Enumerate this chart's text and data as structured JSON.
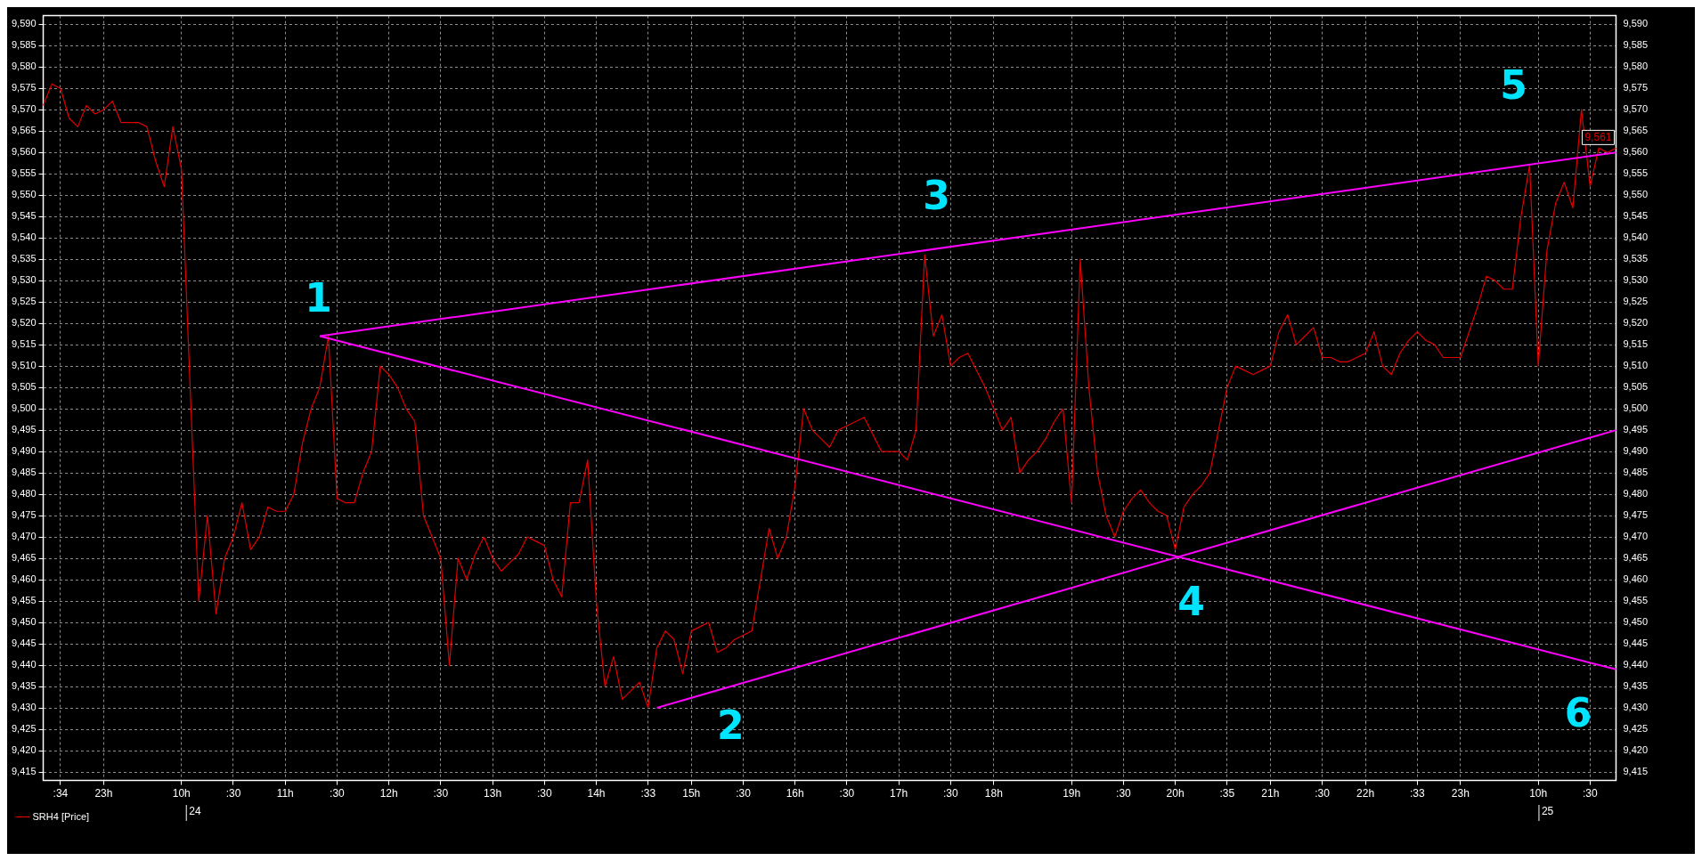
{
  "chart_data": {
    "type": "line",
    "categories": [
      null,
      null,
      ":34",
      null,
      null,
      null,
      null,
      "23h",
      null,
      null,
      null,
      null,
      null,
      null,
      null,
      null,
      "10h",
      null,
      null,
      null,
      null,
      null,
      ":30",
      null,
      null,
      null,
      null,
      null,
      "11h",
      null,
      null,
      null,
      null,
      null,
      ":30",
      null,
      null,
      null,
      null,
      null,
      "12h",
      null,
      null,
      null,
      null,
      null,
      ":30",
      null,
      null,
      null,
      null,
      null,
      "13h",
      null,
      null,
      null,
      null,
      null,
      ":30",
      null,
      null,
      null,
      null,
      null,
      "14h",
      null,
      null,
      null,
      null,
      null,
      ":33",
      null,
      null,
      null,
      null,
      "15h",
      null,
      null,
      null,
      null,
      null,
      ":30",
      null,
      null,
      null,
      null,
      null,
      "16h",
      null,
      null,
      null,
      null,
      null,
      ":30",
      null,
      null,
      null,
      null,
      null,
      "17h",
      null,
      null,
      null,
      null,
      null,
      ":30",
      null,
      null,
      null,
      null,
      "18h",
      null,
      null,
      null,
      null,
      null,
      null,
      null,
      null,
      "19h",
      null,
      null,
      null,
      null,
      null,
      ":30",
      null,
      null,
      null,
      null,
      null,
      "20h",
      null,
      null,
      null,
      null,
      null,
      ":35",
      null,
      null,
      null,
      null,
      "21h",
      null,
      null,
      null,
      null,
      null,
      ":30",
      null,
      null,
      null,
      null,
      "22h",
      null,
      null,
      null,
      null,
      null,
      ":33",
      null,
      null,
      null,
      null,
      "23h",
      null,
      null,
      null,
      null,
      null,
      null,
      null,
      null,
      "10h",
      null,
      null,
      null,
      null,
      null,
      ":30",
      null,
      null,
      null
    ],
    "series": [
      {
        "name": "SRH4 [Price]",
        "color": "#e00000",
        "values": [
          9571,
          9576,
          9575,
          9568,
          9566,
          9571,
          9569,
          9570,
          9572,
          9567,
          9567,
          9567,
          9566,
          9558,
          9552,
          9566,
          9556,
          9505,
          9455,
          9475,
          9452,
          9465,
          9470,
          9478,
          9467,
          9470,
          9477,
          9476,
          9476,
          9480,
          9492,
          9500,
          9505,
          9517,
          9479,
          9478,
          9478,
          9485,
          9490,
          9510,
          9508,
          9505,
          9500,
          9497,
          9475,
          9470,
          9465,
          9440,
          9465,
          9460,
          9466,
          9470,
          9465,
          9462,
          9464,
          9466,
          9470,
          9469,
          9468,
          9460,
          9456,
          9478,
          9478,
          9488,
          9455,
          9435,
          9442,
          9432,
          9434,
          9436,
          9430,
          9444,
          9448,
          9446,
          9438,
          9448,
          9449,
          9450,
          9443,
          9444,
          9446,
          9447,
          9448,
          9460,
          9472,
          9465,
          9470,
          9482,
          9500,
          9495,
          9493,
          9491,
          9495,
          9496,
          9497,
          9498,
          9494,
          9490,
          9490,
          9490,
          9488,
          9495,
          9536,
          9517,
          9522,
          9510,
          9512,
          9513,
          9509,
          9505,
          9500,
          9495,
          9498,
          9485,
          9488,
          9490,
          9493,
          9497,
          9500,
          9478,
          9535,
          9505,
          9485,
          9475,
          9470,
          9476,
          9479,
          9481,
          9478,
          9476,
          9475,
          9467,
          9477,
          9480,
          9482,
          9485,
          9495,
          9505,
          9510,
          9509,
          9508,
          9509,
          9510,
          9518,
          9522,
          9515,
          9517,
          9519,
          9512,
          9512,
          9511,
          9511,
          9512,
          9513,
          9518,
          9510,
          9508,
          9513,
          9516,
          9518,
          9516,
          9515,
          9512,
          9512,
          9512,
          9518,
          9524,
          9531,
          9530,
          9528,
          9528,
          9545,
          9557,
          9510,
          9537,
          9548,
          9553,
          9547,
          9570,
          9552,
          9561,
          9560,
          9561
        ],
        "value_labels": [
          null,
          null,
          null,
          null,
          null,
          null,
          null,
          null,
          null,
          null,
          null,
          null,
          null,
          null,
          null,
          null,
          null,
          null,
          null,
          null,
          null,
          null,
          null,
          null,
          null,
          null,
          null,
          null,
          null,
          null,
          null,
          null,
          null,
          null,
          null,
          null,
          null,
          null,
          null,
          null,
          null,
          null,
          null,
          null,
          null,
          null,
          null,
          null,
          null,
          null,
          null,
          null,
          null,
          null,
          null,
          null,
          null,
          null,
          null,
          null,
          null,
          null,
          null,
          null,
          null,
          null,
          null,
          null,
          null,
          null,
          null,
          null,
          null,
          null,
          null,
          null,
          null,
          null,
          null,
          null,
          null,
          null,
          null,
          null,
          null,
          null,
          null,
          null,
          null,
          null,
          null,
          null,
          null,
          null,
          null,
          null,
          null,
          null,
          null,
          null,
          null,
          null,
          null,
          null,
          null,
          null,
          null,
          null,
          null,
          null,
          null,
          null,
          null,
          null,
          null,
          null,
          null,
          null,
          null,
          null,
          null,
          null,
          null,
          null,
          null,
          null,
          null,
          null,
          null,
          null,
          null,
          null,
          null,
          null,
          null,
          null,
          null,
          null,
          null,
          null,
          null,
          null,
          null,
          null,
          null,
          null,
          null,
          null,
          null,
          null,
          null,
          null,
          null,
          null,
          null,
          null,
          null,
          null,
          null,
          null,
          null,
          null,
          null,
          null,
          null,
          null,
          null,
          null,
          null,
          null,
          null,
          null,
          null,
          null,
          null,
          null,
          null,
          null,
          null,
          null,
          null,
          null,
          "9,561"
        ]
      },
      {
        "type": "line",
        "color": "#ff00ff",
        "values": [
          null,
          null,
          null,
          null,
          null,
          null,
          null,
          null,
          null,
          null,
          null,
          null,
          null,
          null,
          null,
          null,
          null,
          null,
          null,
          null,
          null,
          null,
          null,
          null,
          null,
          null,
          null,
          null,
          null,
          null,
          null,
          null,
          9517,
          null,
          null,
          null,
          null,
          null,
          null,
          null,
          null,
          null,
          null,
          null,
          null,
          null,
          null,
          null,
          null,
          null,
          null,
          null,
          null,
          null,
          null,
          null,
          null,
          null,
          null,
          null,
          null,
          null,
          null,
          null,
          null,
          null,
          null,
          null,
          null,
          null,
          null,
          null,
          null,
          null,
          null,
          null,
          null,
          null,
          null,
          null,
          null,
          null,
          null,
          null,
          null,
          null,
          null,
          null,
          null,
          null,
          null,
          null,
          null,
          null,
          null,
          null,
          null,
          null,
          null,
          null,
          null,
          null,
          null,
          null,
          null,
          null,
          null,
          null,
          null,
          null,
          null,
          null,
          null,
          null,
          null,
          null,
          null,
          null,
          null,
          null,
          null,
          null,
          null,
          null,
          null,
          null,
          null,
          null,
          null,
          null,
          null,
          null,
          null,
          null,
          null,
          null,
          null,
          null,
          null,
          null,
          null,
          null,
          null,
          null,
          null,
          null,
          null,
          null,
          null,
          null,
          null,
          null,
          null,
          null,
          null,
          null,
          null,
          null,
          null,
          null,
          null,
          null,
          null,
          null,
          null,
          null,
          null,
          null,
          null,
          null,
          null,
          null,
          null,
          null,
          null,
          null,
          null,
          null,
          null,
          null,
          null,
          null,
          9560
        ]
      },
      {
        "type": "line",
        "color": "#ff00ff",
        "values": [
          null,
          null,
          null,
          null,
          null,
          null,
          null,
          null,
          null,
          null,
          null,
          null,
          null,
          null,
          null,
          null,
          null,
          null,
          null,
          null,
          null,
          null,
          null,
          null,
          null,
          null,
          null,
          null,
          null,
          null,
          null,
          null,
          9517,
          null,
          null,
          null,
          null,
          null,
          null,
          null,
          null,
          null,
          null,
          null,
          null,
          null,
          null,
          null,
          null,
          null,
          null,
          null,
          null,
          null,
          null,
          null,
          null,
          null,
          null,
          null,
          null,
          null,
          null,
          null,
          null,
          null,
          null,
          null,
          null,
          null,
          null,
          null,
          null,
          null,
          null,
          null,
          null,
          null,
          null,
          null,
          null,
          null,
          null,
          null,
          null,
          null,
          null,
          null,
          null,
          null,
          null,
          null,
          null,
          null,
          null,
          null,
          null,
          null,
          null,
          null,
          null,
          null,
          null,
          null,
          null,
          null,
          null,
          null,
          null,
          null,
          null,
          null,
          null,
          null,
          null,
          null,
          null,
          null,
          null,
          null,
          null,
          null,
          null,
          null,
          null,
          null,
          null,
          null,
          null,
          null,
          null,
          null,
          null,
          null,
          null,
          null,
          null,
          null,
          null,
          null,
          null,
          null,
          null,
          null,
          null,
          null,
          null,
          null,
          null,
          null,
          null,
          null,
          null,
          null,
          null,
          null,
          null,
          null,
          null,
          null,
          null,
          null,
          null,
          null,
          null,
          null,
          null,
          null,
          null,
          null,
          null,
          null,
          null,
          null,
          null,
          null,
          null,
          null,
          null,
          null,
          null,
          null,
          9439
        ]
      },
      {
        "type": "line",
        "color": "#ff00ff",
        "values": [
          null,
          null,
          null,
          null,
          null,
          null,
          null,
          null,
          null,
          null,
          null,
          null,
          null,
          null,
          null,
          null,
          null,
          null,
          null,
          null,
          null,
          null,
          null,
          null,
          null,
          null,
          null,
          null,
          null,
          null,
          null,
          null,
          null,
          null,
          null,
          null,
          null,
          null,
          null,
          null,
          null,
          null,
          null,
          null,
          null,
          null,
          null,
          null,
          null,
          null,
          null,
          null,
          null,
          null,
          null,
          null,
          null,
          null,
          null,
          null,
          null,
          null,
          null,
          null,
          null,
          null,
          null,
          null,
          null,
          null,
          null,
          9430,
          null,
          null,
          null,
          null,
          null,
          null,
          null,
          null,
          null,
          null,
          null,
          null,
          null,
          null,
          null,
          null,
          null,
          null,
          null,
          null,
          null,
          null,
          null,
          null,
          null,
          null,
          null,
          null,
          null,
          null,
          null,
          null,
          null,
          null,
          null,
          null,
          null,
          null,
          null,
          null,
          null,
          null,
          null,
          null,
          null,
          null,
          null,
          null,
          null,
          null,
          null,
          null,
          null,
          null,
          null,
          null,
          null,
          null,
          null,
          null,
          null,
          null,
          null,
          null,
          null,
          null,
          null,
          null,
          null,
          null,
          null,
          null,
          null,
          null,
          null,
          null,
          null,
          null,
          null,
          null,
          null,
          null,
          null,
          null,
          null,
          null,
          null,
          null,
          null,
          null,
          null,
          null,
          null,
          null,
          null,
          null,
          null,
          null,
          null,
          null,
          null,
          null,
          null,
          null,
          null,
          null,
          null,
          null,
          null,
          null,
          9495
        ]
      }
    ],
    "ylim": [
      9413,
      9592
    ],
    "yticks": [
      {
        "value": 9415,
        "label": "9,415"
      },
      {
        "value": 9420,
        "label": "9,420"
      },
      {
        "value": 9425,
        "label": "9,425"
      },
      {
        "value": 9430,
        "label": "9,430"
      },
      {
        "value": 9435,
        "label": "9,435"
      },
      {
        "value": 9440,
        "label": "9,440"
      },
      {
        "value": 9445,
        "label": "9,445"
      },
      {
        "value": 9450,
        "label": "9,450"
      },
      {
        "value": 9455,
        "label": "9,455"
      },
      {
        "value": 9460,
        "label": "9,460"
      },
      {
        "value": 9465,
        "label": "9,465"
      },
      {
        "value": 9470,
        "label": "9,470"
      },
      {
        "value": 9475,
        "label": "9,475"
      },
      {
        "value": 9480,
        "label": "9,480"
      },
      {
        "value": 9485,
        "label": "9,485"
      },
      {
        "value": 9490,
        "label": "9,490"
      },
      {
        "value": 9495,
        "label": "9,495"
      },
      {
        "value": 9500,
        "label": "9,500"
      },
      {
        "value": 9505,
        "label": "9,505"
      },
      {
        "value": 9510,
        "label": "9,510"
      },
      {
        "value": 9515,
        "label": "9,515"
      },
      {
        "value": 9520,
        "label": "9,520"
      },
      {
        "value": 9525,
        "label": "9,525"
      },
      {
        "value": 9530,
        "label": "9,530"
      },
      {
        "value": 9535,
        "label": "9,535"
      },
      {
        "value": 9540,
        "label": "9,540"
      },
      {
        "value": 9545,
        "label": "9,545"
      },
      {
        "value": 9550,
        "label": "9,550"
      },
      {
        "value": 9555,
        "label": "9,555"
      },
      {
        "value": 9560,
        "label": "9,560"
      },
      {
        "value": 9565,
        "label": "9,565"
      },
      {
        "value": 9570,
        "label": "9,570"
      },
      {
        "value": 9575,
        "label": "9,575"
      },
      {
        "value": 9580,
        "label": "9,580"
      },
      {
        "value": 9585,
        "label": "9,585"
      },
      {
        "value": 9590,
        "label": "9,590"
      }
    ],
    "y2lim": [
      9413,
      9592
    ],
    "y2ticks": [
      {
        "value": 9415,
        "label": "9,415"
      },
      {
        "value": 9420,
        "label": "9,420"
      },
      {
        "value": 9425,
        "label": "9,425"
      },
      {
        "value": 9430,
        "label": "9,430"
      },
      {
        "value": 9435,
        "label": "9,435"
      },
      {
        "value": 9440,
        "label": "9,440"
      },
      {
        "value": 9445,
        "label": "9,445"
      },
      {
        "value": 9450,
        "label": "9,450"
      },
      {
        "value": 9455,
        "label": "9,455"
      },
      {
        "value": 9460,
        "label": "9,460"
      },
      {
        "value": 9465,
        "label": "9,465"
      },
      {
        "value": 9470,
        "label": "9,470"
      },
      {
        "value": 9475,
        "label": "9,475"
      },
      {
        "value": 9480,
        "label": "9,480"
      },
      {
        "value": 9485,
        "label": "9,485"
      },
      {
        "value": 9490,
        "label": "9,490"
      },
      {
        "value": 9495,
        "label": "9,495"
      },
      {
        "value": 9500,
        "label": "9,500"
      },
      {
        "value": 9505,
        "label": "9,505"
      },
      {
        "value": 9510,
        "label": "9,510"
      },
      {
        "value": 9515,
        "label": "9,515"
      },
      {
        "value": 9520,
        "label": "9,520"
      },
      {
        "value": 9525,
        "label": "9,525"
      },
      {
        "value": 9530,
        "label": "9,530"
      },
      {
        "value": 9535,
        "label": "9,535"
      },
      {
        "value": 9540,
        "label": "9,540"
      },
      {
        "value": 9545,
        "label": "9,545"
      },
      {
        "value": 9550,
        "label": "9,550"
      },
      {
        "value": 9555,
        "label": "9,555"
      },
      {
        "value": 9560,
        "label": "9,560"
      },
      {
        "value": 9565,
        "label": "9,565"
      },
      {
        "value": 9570,
        "label": "9,570"
      },
      {
        "value": 9575,
        "label": "9,575"
      },
      {
        "value": 9580,
        "label": "9,580"
      },
      {
        "value": 9585,
        "label": "9,585"
      },
      {
        "value": 9590,
        "label": "9,590"
      }
    ],
    "annotations": [
      "1",
      "2",
      "3",
      "4",
      "5",
      "6",
      "24",
      "25"
    ],
    "grid": true,
    "legend": "bottom left",
    "marker": "none",
    "line_style": "solid"
  }
}
